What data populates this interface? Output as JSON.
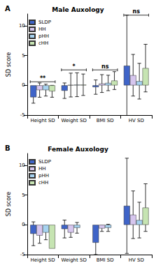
{
  "chart_data": [
    {
      "type": "bar",
      "panel": "A",
      "title": "Male Auxology",
      "y_label": "SD score",
      "categories": [
        "Height SD",
        "Weight SD",
        "BMI SD",
        "HV SD"
      ],
      "series": [
        {
          "name": "SLDP",
          "color": "#3f64c8",
          "values": [
            -2.0,
            -0.9,
            -0.3,
            3.3
          ],
          "errors": [
            1.0,
            1.3,
            1.2,
            8.5
          ]
        },
        {
          "name": "HH",
          "color": "#d6c6ee",
          "values": [
            -0.8,
            0.05,
            0.3,
            1.7
          ],
          "errors": [
            1.2,
            2.0,
            1.5,
            3.5
          ]
        },
        {
          "name": "pHH",
          "color": "#a6d2f0",
          "values": [
            -0.8,
            0.1,
            0.4,
            0.7
          ],
          "errors": [
            1.0,
            2.0,
            1.3,
            3.0
          ]
        },
        {
          "name": "cHH",
          "color": "#c6e4b2",
          "values": [
            -1.0,
            0.1,
            0.8,
            2.9
          ],
          "errors": [
            1.0,
            1.8,
            1.5,
            4.0
          ]
        }
      ],
      "ylim": [
        -5,
        12
      ],
      "yticks": [
        -5,
        0,
        5,
        10
      ],
      "grid": false,
      "legend": "upper left",
      "annotations": [
        {
          "category": "Height SD",
          "text": "**",
          "y": 0.6
        },
        {
          "category": "Weight SD",
          "text": "*",
          "y": 2.6
        },
        {
          "category": "BMI SD",
          "text": "ns",
          "y": 2.6
        },
        {
          "category": "HV SD",
          "text": "ns",
          "y": 11.8
        }
      ]
    },
    {
      "type": "bar",
      "panel": "B",
      "title": "Female Auxology",
      "y_label": "SD score",
      "categories": [
        "Height SD",
        "Weight SD",
        "BMI SD",
        "HV SD"
      ],
      "series": [
        {
          "name": "SLDP",
          "color": "#3f64c8",
          "values": [
            -1.5,
            -0.7,
            -3.0,
            3.2
          ],
          "errors": [
            2.0,
            1.5,
            2.0,
            8.0
          ]
        },
        {
          "name": "HH",
          "color": "#d6c6ee",
          "values": [
            -1.8,
            -1.3,
            -0.6,
            1.7
          ],
          "errors": [
            1.3,
            0.8,
            0.5,
            4.0
          ]
        },
        {
          "name": "pHH",
          "color": "#a6d2f0",
          "values": [
            -1.3,
            -0.5,
            -0.5,
            0.8
          ],
          "errors": [
            1.2,
            0.9,
            0.6,
            3.0
          ]
        },
        {
          "name": "cHH",
          "color": "#c6e4b2",
          "values": [
            -4.0,
            null,
            null,
            2.9
          ],
          "errors": [
            null,
            null,
            null,
            4.0
          ]
        }
      ],
      "ylim": [
        -5,
        12
      ],
      "yticks": [
        -5,
        0,
        5,
        10
      ],
      "grid": false,
      "legend": "upper left"
    }
  ]
}
